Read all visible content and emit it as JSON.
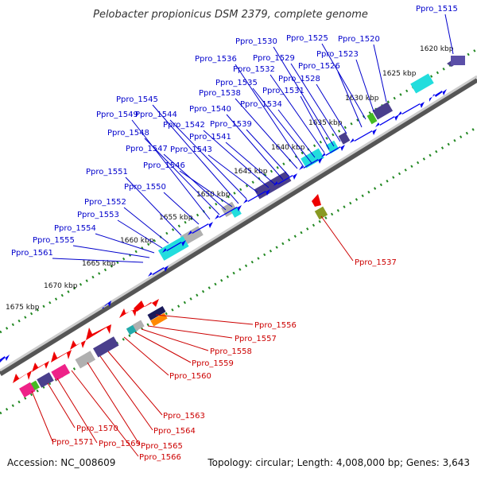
{
  "title": "Pelobacter propionicus DSM 2379, complete genome",
  "footer": {
    "accession": "Accession: NC_008609",
    "summary": "Topology: circular; Length: 4,008,000 bp; Genes: 3,643"
  },
  "colors": {
    "forward_gene": "#0000ee",
    "reverse_gene": "#ee0000",
    "blue_label": "#0000cc",
    "red_label": "#cc0000",
    "backbone": "#888888",
    "tick": "#228822",
    "cog_cyan": "#22dddd",
    "cog_purple": "#4a3f8c",
    "cog_gray": "#b0b0b0",
    "cog_green": "#44bb22",
    "cog_magenta": "#ee2288",
    "cog_orange": "#ff8800",
    "cog_olive": "#889922"
  },
  "kbp_labels": [
    "1620 kbp",
    "1625 kbp",
    "1630 kbp",
    "1635 kbp",
    "1640 kbp",
    "1645 kbp",
    "1650 kbp",
    "1655 kbp",
    "1660 kbp",
    "1665 kbp",
    "1670 kbp",
    "1675 kbp"
  ],
  "forward_labels": [
    "Ppro_1515",
    "Ppro_1520",
    "Ppro_1523",
    "Ppro_1525",
    "Ppro_1526",
    "Ppro_1528",
    "Ppro_1529",
    "Ppro_1530",
    "Ppro_1531",
    "Ppro_1532",
    "Ppro_1534",
    "Ppro_1535",
    "Ppro_1536",
    "Ppro_1538",
    "Ppro_1539",
    "Ppro_1540",
    "Ppro_1541",
    "Ppro_1542",
    "Ppro_1543",
    "Ppro_1544",
    "Ppro_1545",
    "Ppro_1546",
    "Ppro_1547",
    "Ppro_1548",
    "Ppro_1549",
    "Ppro_1550",
    "Ppro_1551",
    "Ppro_1552",
    "Ppro_1553",
    "Ppro_1554",
    "Ppro_1555",
    "Ppro_1561"
  ],
  "reverse_labels": [
    "Ppro_1537",
    "Ppro_1556",
    "Ppro_1557",
    "Ppro_1558",
    "Ppro_1559",
    "Ppro_1560",
    "Ppro_1563",
    "Ppro_1564",
    "Ppro_1565",
    "Ppro_1566",
    "Ppro_1569",
    "Ppro_1570",
    "Ppro_1571"
  ]
}
